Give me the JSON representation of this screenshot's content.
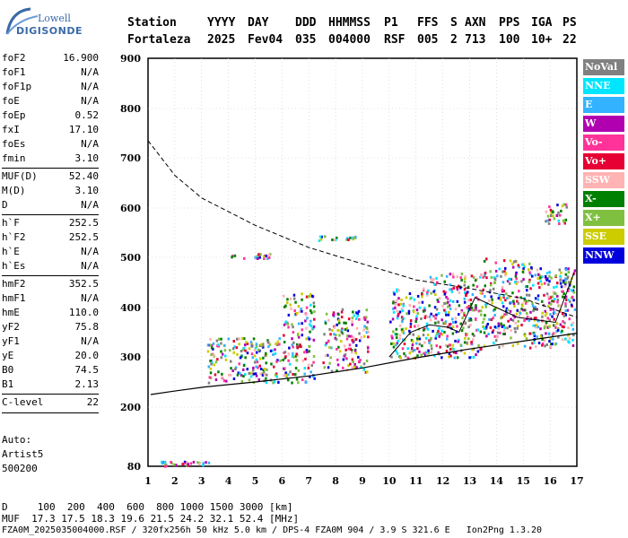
{
  "brand": {
    "line1": "Lowell",
    "line2": "DIGISONDE"
  },
  "header": {
    "columns": [
      {
        "label": "Station",
        "value": "Fortaleza"
      },
      {
        "label": "YYYY",
        "value": "2025"
      },
      {
        "label": "DAY",
        "value": "Fev04"
      },
      {
        "label": "DDD",
        "value": "035"
      },
      {
        "label": "HHMMSS",
        "value": "004000"
      },
      {
        "label": "P1",
        "value": "RSF"
      },
      {
        "label": "FFS",
        "value": "005"
      },
      {
        "label": "S",
        "value": "2"
      },
      {
        "label": "AXN",
        "value": "713"
      },
      {
        "label": "PPS",
        "value": "100"
      },
      {
        "label": "IGA",
        "value": "10+"
      },
      {
        "label": "PS",
        "value": "22"
      }
    ]
  },
  "params": [
    {
      "label": "foF2",
      "value": "16.900"
    },
    {
      "label": "foF1",
      "value": "N/A"
    },
    {
      "label": "foF1p",
      "value": "N/A"
    },
    {
      "label": "foE",
      "value": "N/A"
    },
    {
      "label": "foEp",
      "value": "0.52"
    },
    {
      "label": "fxI",
      "value": "17.10"
    },
    {
      "label": "foEs",
      "value": "N/A"
    },
    {
      "label": "fmin",
      "value": "3.10"
    },
    {
      "label": "MUF(D)",
      "value": "52.40"
    },
    {
      "label": "M(D)",
      "value": "3.10"
    },
    {
      "label": "D",
      "value": "N/A"
    },
    {
      "label": "h`F",
      "value": "252.5"
    },
    {
      "label": "h`F2",
      "value": "252.5"
    },
    {
      "label": "h`E",
      "value": "N/A"
    },
    {
      "label": "h`Es",
      "value": "N/A"
    },
    {
      "label": "hmF2",
      "value": "352.5"
    },
    {
      "label": "hmF1",
      "value": "N/A"
    },
    {
      "label": "hmE",
      "value": "110.0"
    },
    {
      "label": "yF2",
      "value": "75.8"
    },
    {
      "label": "yF1",
      "value": "N/A"
    },
    {
      "label": "yE",
      "value": "20.0"
    },
    {
      "label": "B0",
      "value": "74.5"
    },
    {
      "label": "B1",
      "value": "2.13"
    },
    {
      "label": "C-level",
      "value": "22"
    }
  ],
  "auto": {
    "line1": "Auto:",
    "line2": "Artist5",
    "line3": "500200"
  },
  "footer": {
    "d_row": "D     100  200  400  600  800 1000 1500 3000 [km]",
    "muf_row": "MUF  17.3 17.5 18.3 19.6 21.5 24.2 32.1 52.4 [MHz]",
    "info_row": "FZA0M_2025035004000.RSF / 320fx256h 50 kHz 5.0 km / DPS-4 FZA0M 904 / 3.9 S 321.6 E   Ion2Png 1.3.20"
  },
  "legend": [
    {
      "label": "NoVal",
      "color": "#808080"
    },
    {
      "label": "NNE",
      "color": "#00e6ff"
    },
    {
      "label": "E",
      "color": "#33b3ff"
    },
    {
      "label": "W",
      "color": "#b000b0"
    },
    {
      "label": "Vo-",
      "color": "#ff3399"
    },
    {
      "label": "Vo+",
      "color": "#e60033"
    },
    {
      "label": "SSW",
      "color": "#ffb3b3"
    },
    {
      "label": "X-",
      "color": "#008000"
    },
    {
      "label": "X+",
      "color": "#80c040"
    },
    {
      "label": "SSE",
      "color": "#cccc00"
    },
    {
      "label": "NNW",
      "color": "#0000dd"
    }
  ],
  "chart_data": {
    "type": "scatter",
    "x_ticks": [
      1,
      2,
      3,
      4,
      5,
      6,
      7,
      8,
      9,
      10,
      11,
      12,
      13,
      14,
      15,
      16,
      17
    ],
    "y_ticks": [
      80,
      200,
      300,
      400,
      500,
      600,
      700,
      800,
      900
    ],
    "xlim": [
      1,
      17
    ],
    "ylim": [
      80,
      900
    ],
    "grid": true,
    "legend_position": "right",
    "profile_curve": {
      "x": [
        3.1,
        5,
        7,
        9,
        11,
        13,
        15,
        17
      ],
      "y": [
        240,
        250,
        262,
        278,
        298,
        316,
        332,
        348
      ]
    },
    "muf_curve": {
      "x": [
        1,
        2,
        3,
        5,
        7,
        9,
        11,
        13,
        15,
        17
      ],
      "y": [
        735,
        665,
        620,
        565,
        520,
        487,
        455,
        438,
        418,
        380
      ]
    },
    "trace": {
      "x": [
        10.0,
        10.8,
        11.5,
        12.2,
        12.6,
        13.2,
        14.0,
        14.8,
        15.5,
        16.2,
        16.9
      ],
      "y": [
        300,
        350,
        365,
        360,
        350,
        420,
        400,
        380,
        375,
        370,
        470
      ]
    }
  }
}
